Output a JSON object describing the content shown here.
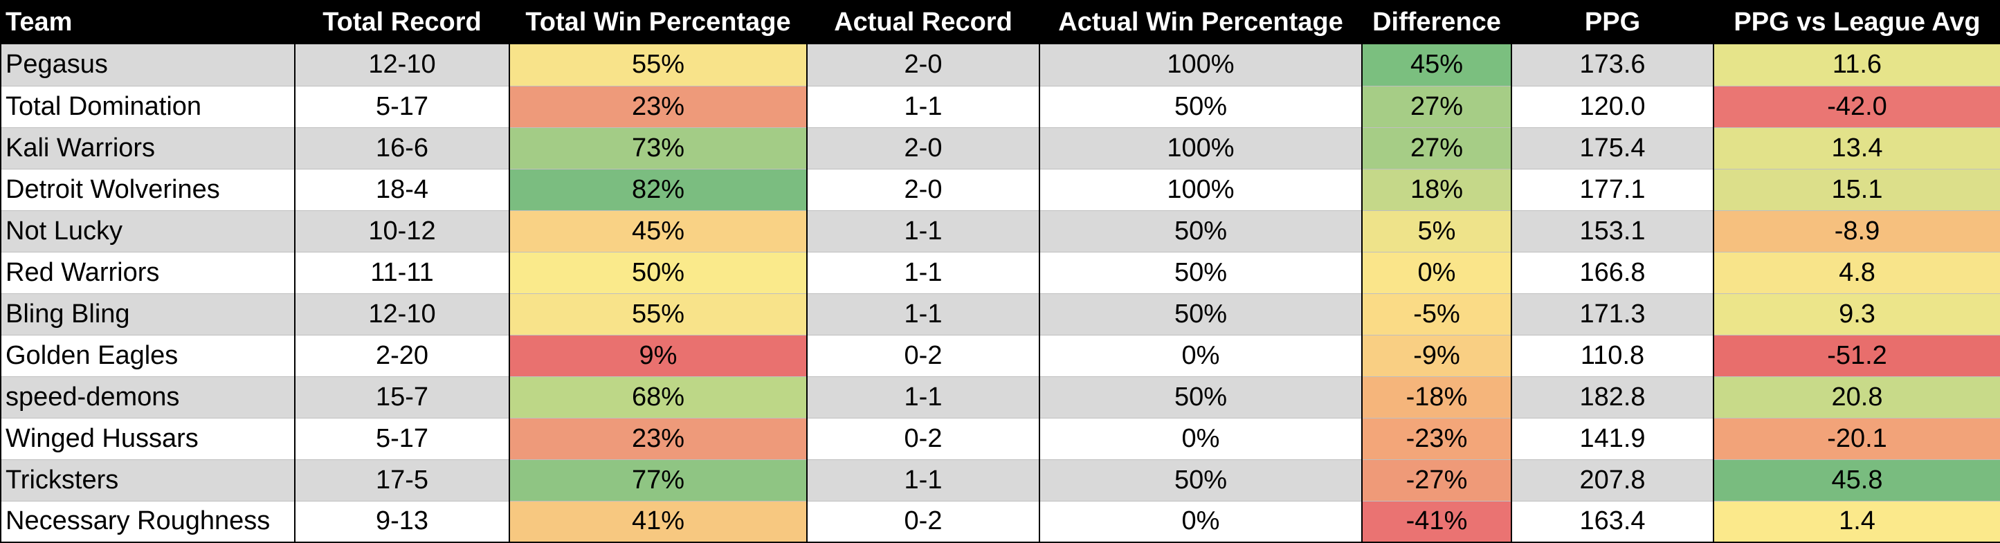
{
  "table": {
    "columns": [
      "Team",
      "Total Record",
      "Total Win Percentage",
      "Actual Record",
      "Actual Win Percentage",
      "Difference",
      "PPG",
      "PPG vs League Avg"
    ],
    "rows": [
      {
        "team": "Pegasus",
        "total_record": "12-10",
        "total_win_pct": "55%",
        "actual_record": "2-0",
        "actual_win_pct": "100%",
        "difference": "45%",
        "ppg": "173.6",
        "ppg_vs_avg": "11.6",
        "colors": {
          "total_win_pct": "#f8e38a",
          "difference": "#7bbf7f",
          "ppg_vs_avg": "#e6e48a"
        }
      },
      {
        "team": "Total Domination",
        "total_record": "5-17",
        "total_win_pct": "23%",
        "actual_record": "1-1",
        "actual_win_pct": "50%",
        "difference": "27%",
        "ppg": "120.0",
        "ppg_vs_avg": "-42.0",
        "colors": {
          "total_win_pct": "#ee9a7a",
          "difference": "#a6cd86",
          "ppg_vs_avg": "#ea7673"
        }
      },
      {
        "team": "Kali Warriors",
        "total_record": "16-6",
        "total_win_pct": "73%",
        "actual_record": "2-0",
        "actual_win_pct": "100%",
        "difference": "27%",
        "ppg": "175.4",
        "ppg_vs_avg": "13.4",
        "colors": {
          "total_win_pct": "#a3cc86",
          "difference": "#a6cd86",
          "ppg_vs_avg": "#e2e28a"
        }
      },
      {
        "team": "Detroit Wolverines",
        "total_record": "18-4",
        "total_win_pct": "82%",
        "actual_record": "2-0",
        "actual_win_pct": "100%",
        "difference": "18%",
        "ppg": "177.1",
        "ppg_vs_avg": "15.1",
        "colors": {
          "total_win_pct": "#7bbd80",
          "difference": "#c5d889",
          "ppg_vs_avg": "#dcdf8a"
        }
      },
      {
        "team": "Not Lucky",
        "total_record": "10-12",
        "total_win_pct": "45%",
        "actual_record": "1-1",
        "actual_win_pct": "50%",
        "difference": "5%",
        "ppg": "153.1",
        "ppg_vs_avg": "-8.9",
        "colors": {
          "total_win_pct": "#f9d285",
          "difference": "#eee38a",
          "ppg_vs_avg": "#f6c07e"
        }
      },
      {
        "team": "Red Warriors",
        "total_record": "11-11",
        "total_win_pct": "50%",
        "actual_record": "1-1",
        "actual_win_pct": "50%",
        "difference": "0%",
        "ppg": "166.8",
        "ppg_vs_avg": "4.8",
        "colors": {
          "total_win_pct": "#faea8b",
          "difference": "#fae58a",
          "ppg_vs_avg": "#f8e48a"
        }
      },
      {
        "team": "Bling Bling",
        "total_record": "12-10",
        "total_win_pct": "55%",
        "actual_record": "1-1",
        "actual_win_pct": "50%",
        "difference": "-5%",
        "ppg": "171.3",
        "ppg_vs_avg": "9.3",
        "colors": {
          "total_win_pct": "#f8e38a",
          "difference": "#fadb86",
          "ppg_vs_avg": "#ece58a"
        }
      },
      {
        "team": "Golden Eagles",
        "total_record": "2-20",
        "total_win_pct": "9%",
        "actual_record": "0-2",
        "actual_win_pct": "0%",
        "difference": "-9%",
        "ppg": "110.8",
        "ppg_vs_avg": "-51.2",
        "colors": {
          "total_win_pct": "#e9716f",
          "difference": "#f9cf83",
          "ppg_vs_avg": "#e86e6c"
        }
      },
      {
        "team": "speed-demons",
        "total_record": "15-7",
        "total_win_pct": "68%",
        "actual_record": "1-1",
        "actual_win_pct": "50%",
        "difference": "-18%",
        "ppg": "182.8",
        "ppg_vs_avg": "20.8",
        "colors": {
          "total_win_pct": "#bdd787",
          "difference": "#f5b57b",
          "ppg_vs_avg": "#c8da89"
        }
      },
      {
        "team": "Winged Hussars",
        "total_record": "5-17",
        "total_win_pct": "23%",
        "actual_record": "0-2",
        "actual_win_pct": "0%",
        "difference": "-23%",
        "ppg": "141.9",
        "ppg_vs_avg": "-20.1",
        "colors": {
          "total_win_pct": "#ee9a7a",
          "difference": "#f3a679",
          "ppg_vs_avg": "#f2a379"
        }
      },
      {
        "team": "Tricksters",
        "total_record": "17-5",
        "total_win_pct": "77%",
        "actual_record": "1-1",
        "actual_win_pct": "50%",
        "difference": "-27%",
        "ppg": "207.8",
        "ppg_vs_avg": "45.8",
        "colors": {
          "total_win_pct": "#8fc583",
          "difference": "#ef9a78",
          "ppg_vs_avg": "#79bc7f"
        }
      },
      {
        "team": "Necessary Roughness",
        "total_record": "9-13",
        "total_win_pct": "41%",
        "actual_record": "0-2",
        "actual_win_pct": "0%",
        "difference": "-41%",
        "ppg": "163.4",
        "ppg_vs_avg": "1.4",
        "colors": {
          "total_win_pct": "#f7c880",
          "difference": "#ea7372",
          "ppg_vs_avg": "#fbe98b"
        }
      }
    ]
  }
}
